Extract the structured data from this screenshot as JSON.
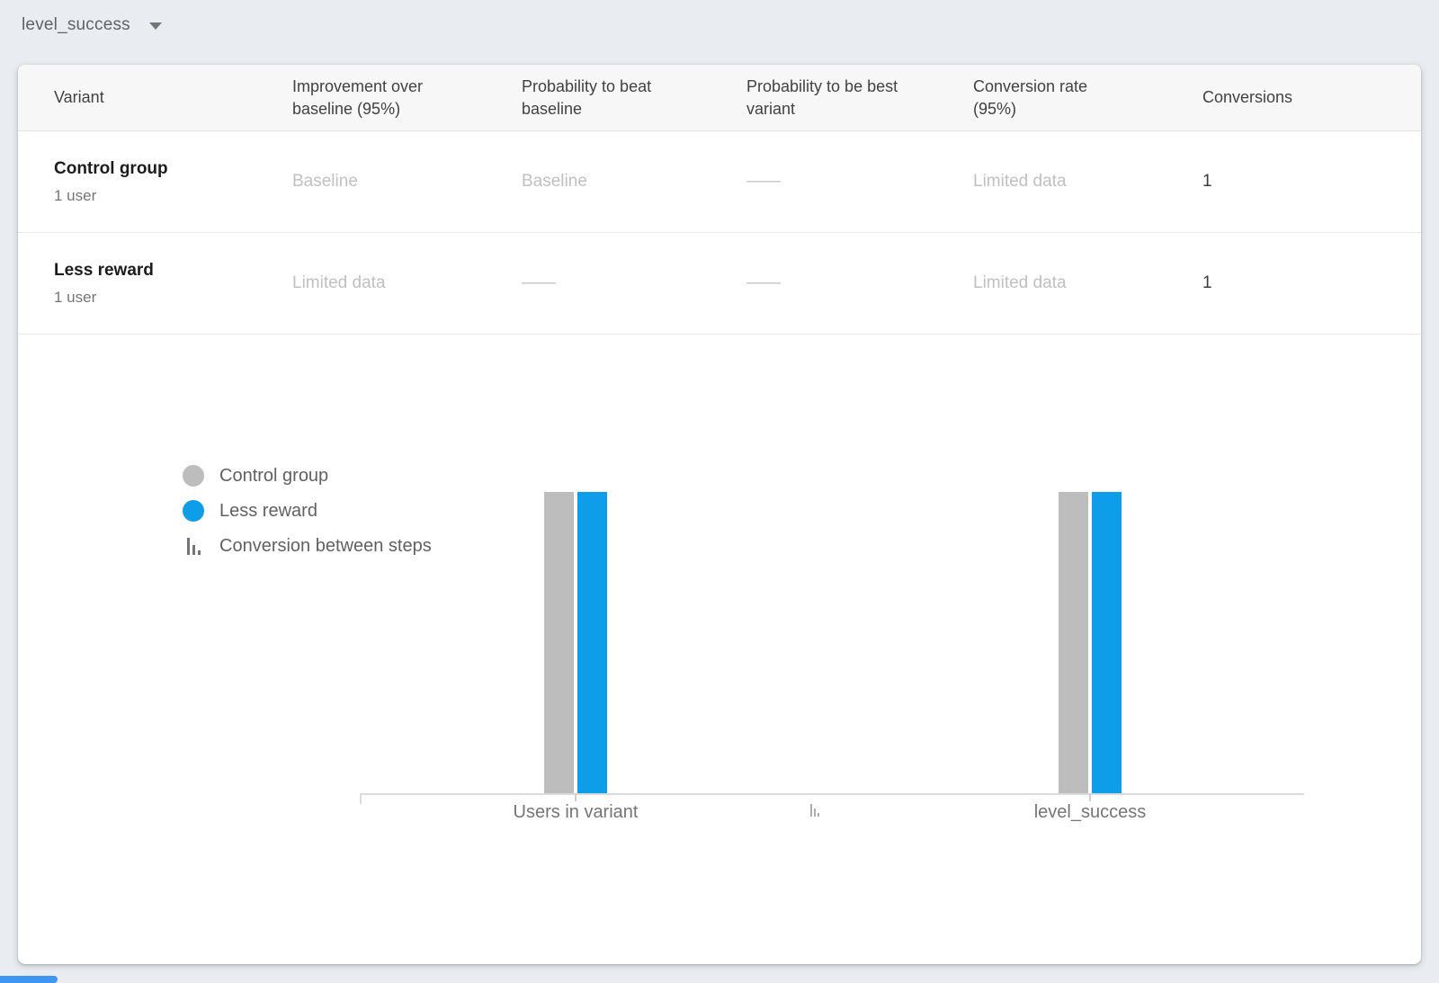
{
  "toolbar": {
    "metric_selector": {
      "label": "level_success"
    }
  },
  "table": {
    "columns": {
      "variant": "Variant",
      "improvement": "Improvement over baseline (95%)",
      "prob_beat": "Probability to beat baseline",
      "prob_best": "Probability to be best variant",
      "rate": "Conversion rate (95%)",
      "conversions": "Conversions"
    },
    "rows": [
      {
        "variant": "Control group",
        "users": "1 user",
        "improvement": "Baseline",
        "prob_beat": "Baseline",
        "prob_best": "——",
        "rate": "Limited data",
        "conversions": "1"
      },
      {
        "variant": "Less reward",
        "users": "1 user",
        "improvement": "Limited data",
        "prob_beat": "——",
        "prob_best": "——",
        "rate": "Limited data",
        "conversions": "1"
      }
    ]
  },
  "chart_data": {
    "type": "bar",
    "categories": [
      "Users in variant",
      "level_success"
    ],
    "series": [
      {
        "name": "Control group",
        "color": "#bdbdbd",
        "values": [
          1,
          1
        ]
      },
      {
        "name": "Less reward",
        "color": "#0d9de9",
        "values": [
          1,
          1
        ]
      }
    ],
    "ylim": [
      0,
      1
    ],
    "grid": false,
    "legend_position": "left",
    "legend": [
      {
        "label": "Control group",
        "marker": "circle",
        "color": "#bdbdbd"
      },
      {
        "label": "Less reward",
        "marker": "circle",
        "color": "#0d9de9"
      },
      {
        "label": "Conversion between steps",
        "marker": "funnel-steps-icon"
      }
    ]
  }
}
